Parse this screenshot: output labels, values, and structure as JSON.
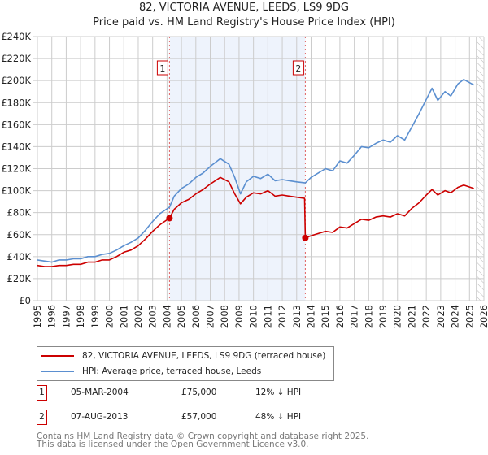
{
  "chart_data": {
    "type": "line",
    "title": "82, VICTORIA AVENUE, LEEDS, LS9 9DG",
    "subtitle": "Price paid vs. HM Land Registry's House Price Index (HPI)",
    "xlim": [
      1995,
      2026
    ],
    "ylim": [
      0,
      240000
    ],
    "x_ticks": [
      "1995",
      "1996",
      "1997",
      "1998",
      "1999",
      "2000",
      "2001",
      "2002",
      "2003",
      "2004",
      "2005",
      "2006",
      "2007",
      "2008",
      "2009",
      "2010",
      "2011",
      "2012",
      "2013",
      "2014",
      "2015",
      "2016",
      "2017",
      "2018",
      "2019",
      "2020",
      "2021",
      "2022",
      "2023",
      "2024",
      "2025",
      "2026"
    ],
    "y_ticks": [
      {
        "v": 0,
        "label": "£0"
      },
      {
        "v": 20000,
        "label": "£20K"
      },
      {
        "v": 40000,
        "label": "£40K"
      },
      {
        "v": 60000,
        "label": "£60K"
      },
      {
        "v": 80000,
        "label": "£80K"
      },
      {
        "v": 100000,
        "label": "£100K"
      },
      {
        "v": 120000,
        "label": "£120K"
      },
      {
        "v": 140000,
        "label": "£140K"
      },
      {
        "v": 160000,
        "label": "£160K"
      },
      {
        "v": 180000,
        "label": "£180K"
      },
      {
        "v": 200000,
        "label": "£200K"
      },
      {
        "v": 220000,
        "label": "£220K"
      },
      {
        "v": 240000,
        "label": "£240K"
      }
    ],
    "grid": true,
    "shaded_range": [
      2004.17,
      2013.6
    ],
    "forecast_hatch_from": 2025.5,
    "series": [
      {
        "name": "82, VICTORIA AVENUE, LEEDS, LS9 9DG (terraced house)",
        "color": "#cc0000",
        "points": [
          [
            1995,
            32
          ],
          [
            1995.5,
            31
          ],
          [
            1996,
            31
          ],
          [
            1996.5,
            32
          ],
          [
            1997,
            32
          ],
          [
            1997.5,
            33
          ],
          [
            1998,
            33
          ],
          [
            1998.5,
            35
          ],
          [
            1999,
            35
          ],
          [
            1999.5,
            37
          ],
          [
            2000,
            37
          ],
          [
            2000.5,
            40
          ],
          [
            2001,
            44
          ],
          [
            2001.5,
            46
          ],
          [
            2002,
            50
          ],
          [
            2002.5,
            56
          ],
          [
            2003,
            63
          ],
          [
            2003.5,
            69
          ],
          [
            2004.17,
            75
          ],
          [
            2004.5,
            83
          ],
          [
            2005,
            89
          ],
          [
            2005.5,
            92
          ],
          [
            2006,
            97
          ],
          [
            2006.5,
            101
          ],
          [
            2007,
            106
          ],
          [
            2007.7,
            112
          ],
          [
            2008.3,
            108
          ],
          [
            2008.7,
            97
          ],
          [
            2009.1,
            88
          ],
          [
            2009.5,
            94
          ],
          [
            2010,
            98
          ],
          [
            2010.5,
            97
          ],
          [
            2011,
            100
          ],
          [
            2011.5,
            95
          ],
          [
            2012,
            96
          ],
          [
            2012.5,
            95
          ],
          [
            2013,
            94
          ],
          [
            2013.55,
            93
          ],
          [
            2013.6,
            57
          ],
          [
            2014,
            59
          ],
          [
            2014.5,
            61
          ],
          [
            2015,
            63
          ],
          [
            2015.5,
            62
          ],
          [
            2016,
            67
          ],
          [
            2016.5,
            66
          ],
          [
            2017,
            70
          ],
          [
            2017.5,
            74
          ],
          [
            2018,
            73
          ],
          [
            2018.5,
            76
          ],
          [
            2019,
            77
          ],
          [
            2019.5,
            76
          ],
          [
            2020,
            79
          ],
          [
            2020.5,
            77
          ],
          [
            2021,
            84
          ],
          [
            2021.5,
            89
          ],
          [
            2022,
            96
          ],
          [
            2022.4,
            101
          ],
          [
            2022.8,
            96
          ],
          [
            2023.3,
            100
          ],
          [
            2023.7,
            98
          ],
          [
            2024.2,
            103
          ],
          [
            2024.6,
            105
          ],
          [
            2025.3,
            102
          ]
        ]
      },
      {
        "name": "HPI: Average price, terraced house, Leeds",
        "color": "#5b8fd0",
        "points": [
          [
            1995,
            37
          ],
          [
            1995.5,
            36
          ],
          [
            1996,
            35
          ],
          [
            1996.5,
            37
          ],
          [
            1997,
            37
          ],
          [
            1997.5,
            38
          ],
          [
            1998,
            38
          ],
          [
            1998.5,
            40
          ],
          [
            1999,
            40
          ],
          [
            1999.5,
            42
          ],
          [
            2000,
            43
          ],
          [
            2000.5,
            46
          ],
          [
            2001,
            50
          ],
          [
            2001.5,
            53
          ],
          [
            2002,
            57
          ],
          [
            2002.5,
            64
          ],
          [
            2003,
            72
          ],
          [
            2003.5,
            79
          ],
          [
            2004.17,
            85
          ],
          [
            2004.5,
            95
          ],
          [
            2005,
            102
          ],
          [
            2005.5,
            106
          ],
          [
            2006,
            112
          ],
          [
            2006.5,
            116
          ],
          [
            2007,
            122
          ],
          [
            2007.7,
            129
          ],
          [
            2008.3,
            124
          ],
          [
            2008.7,
            112
          ],
          [
            2009.1,
            97
          ],
          [
            2009.5,
            108
          ],
          [
            2010,
            113
          ],
          [
            2010.5,
            111
          ],
          [
            2011,
            115
          ],
          [
            2011.5,
            109
          ],
          [
            2012,
            110
          ],
          [
            2012.5,
            109
          ],
          [
            2013,
            108
          ],
          [
            2013.6,
            107
          ],
          [
            2014,
            112
          ],
          [
            2014.5,
            116
          ],
          [
            2015,
            120
          ],
          [
            2015.5,
            118
          ],
          [
            2016,
            127
          ],
          [
            2016.5,
            125
          ],
          [
            2017,
            132
          ],
          [
            2017.5,
            140
          ],
          [
            2018,
            139
          ],
          [
            2018.5,
            143
          ],
          [
            2019,
            146
          ],
          [
            2019.5,
            144
          ],
          [
            2020,
            150
          ],
          [
            2020.5,
            146
          ],
          [
            2021,
            158
          ],
          [
            2021.5,
            170
          ],
          [
            2022,
            183
          ],
          [
            2022.4,
            193
          ],
          [
            2022.8,
            182
          ],
          [
            2023.3,
            190
          ],
          [
            2023.7,
            186
          ],
          [
            2024.2,
            197
          ],
          [
            2024.6,
            201
          ],
          [
            2025.3,
            196
          ]
        ]
      }
    ],
    "point_unit": "£K",
    "sales": [
      {
        "id": "1",
        "year": 2004.17,
        "value": 75,
        "date": "05-MAR-2004",
        "price": "£75,000",
        "hpi": "12% ↓ HPI"
      },
      {
        "id": "2",
        "year": 2013.6,
        "value": 57,
        "date": "07-AUG-2013",
        "price": "£57,000",
        "hpi": "48% ↓ HPI"
      }
    ]
  },
  "legend": {
    "property": "82, VICTORIA AVENUE, LEEDS, LS9 9DG (terraced house)",
    "hpi": "HPI: Average price, terraced house, Leeds"
  },
  "footer": {
    "line1": "Contains HM Land Registry data © Crown copyright and database right 2025.",
    "line2": "This data is licensed under the Open Government Licence v3.0."
  }
}
